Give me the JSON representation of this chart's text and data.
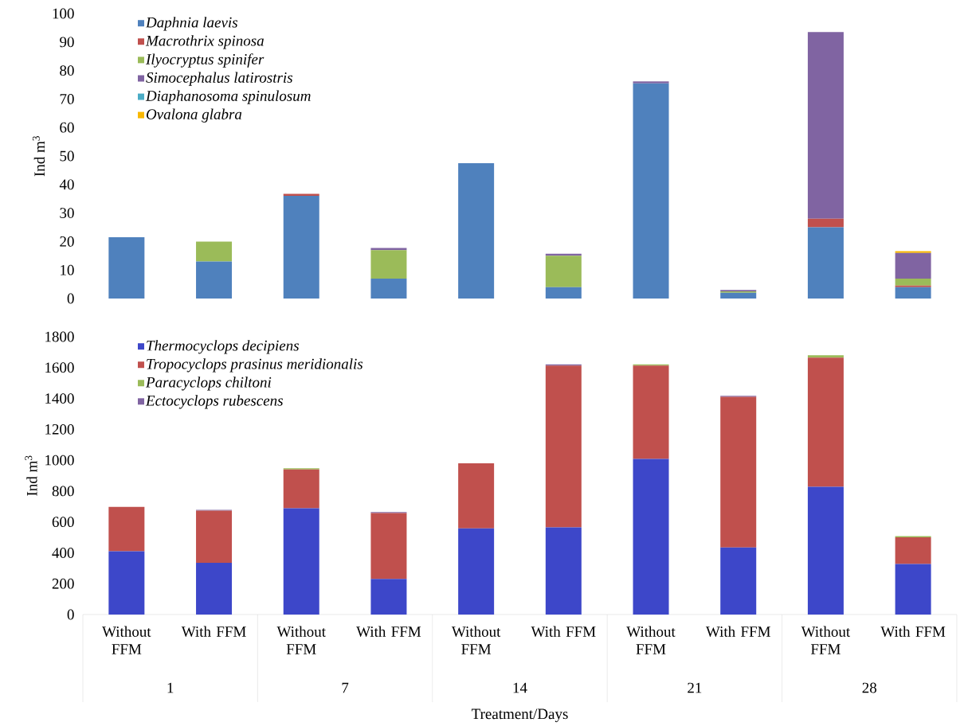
{
  "chart_data": [
    {
      "type": "bar",
      "stacked": true,
      "ylabel": "Ind m$^{3}$",
      "legend": "top left",
      "tick_labels": "y",
      "categories": [
        null,
        null,
        null,
        null,
        null,
        null,
        null,
        null,
        null,
        null
      ],
      "ylim": [
        0,
        100
      ],
      "yticks": [
        0,
        10,
        20,
        30,
        40,
        50,
        60,
        70,
        80,
        90,
        100
      ],
      "series": [
        {
          "name": "Daphnia laevis",
          "color": "#4f81bd",
          "values": [
            21.5,
            13,
            36,
            7,
            47.5,
            4,
            75.5,
            2,
            25,
            4
          ]
        },
        {
          "name": "Macrothrix spinosa",
          "color": "#c0504d",
          "values": [
            0,
            0,
            0.7,
            0,
            0,
            0,
            0,
            0,
            3,
            0.5
          ]
        },
        {
          "name": "Ilyocryptus spinifer",
          "color": "#9bbb59",
          "values": [
            0,
            7,
            0,
            10,
            0,
            11,
            0,
            0.5,
            0,
            2.5
          ]
        },
        {
          "name": "Simocephalus latirostris",
          "color": "#8064a2",
          "values": [
            0,
            0,
            0,
            0.7,
            0,
            0.7,
            0.7,
            0.5,
            65.5,
            9
          ]
        },
        {
          "name": "Diaphanosoma spinulosum",
          "color": "#4bacc6",
          "values": [
            0,
            0,
            0,
            0,
            0,
            0,
            0,
            0,
            0,
            0
          ]
        },
        {
          "name": "Ovalona glabra",
          "color": "#f9b800",
          "values": [
            0,
            0,
            0,
            0,
            0,
            0,
            0,
            0,
            0,
            0.6
          ]
        }
      ]
    },
    {
      "type": "bar",
      "stacked": true,
      "ylabel": "Ind m$^{3}$",
      "xlabel": "Treatment/Days",
      "legend": "top left",
      "categories": [
        "Without FFM",
        "With FFM",
        "Without FFM",
        "With FFM",
        "Without FFM",
        "With FFM",
        "Without FFM",
        "With FFM",
        "Without FFM",
        "With FFM"
      ],
      "annotations": [
        "1",
        "7",
        "14",
        "21",
        "28"
      ],
      "ylim": [
        0,
        1800
      ],
      "yticks": [
        0,
        200,
        400,
        600,
        800,
        1000,
        1200,
        1400,
        1600,
        1800
      ],
      "series": [
        {
          "name": "Thermocyclops decipiens",
          "color": "#3d47c9",
          "values": [
            410,
            335,
            689,
            231,
            558,
            565,
            1008,
            434,
            828,
            327
          ]
        },
        {
          "name": "Tropocyclops prasinus meridionalis",
          "color": "#c0504d",
          "values": [
            287,
            338,
            251,
            426,
            422,
            1048,
            605,
            976,
            837,
            173
          ]
        },
        {
          "name": "Paracyclops chiltoni",
          "color": "#9bbb59",
          "values": [
            0,
            0,
            8,
            0,
            0,
            0,
            8,
            0,
            15,
            8
          ]
        },
        {
          "name": "Ectocyclops rubescens",
          "color": "#8064a2",
          "values": [
            0,
            5,
            0,
            7,
            0,
            8,
            0,
            7,
            0,
            0
          ]
        }
      ]
    }
  ]
}
